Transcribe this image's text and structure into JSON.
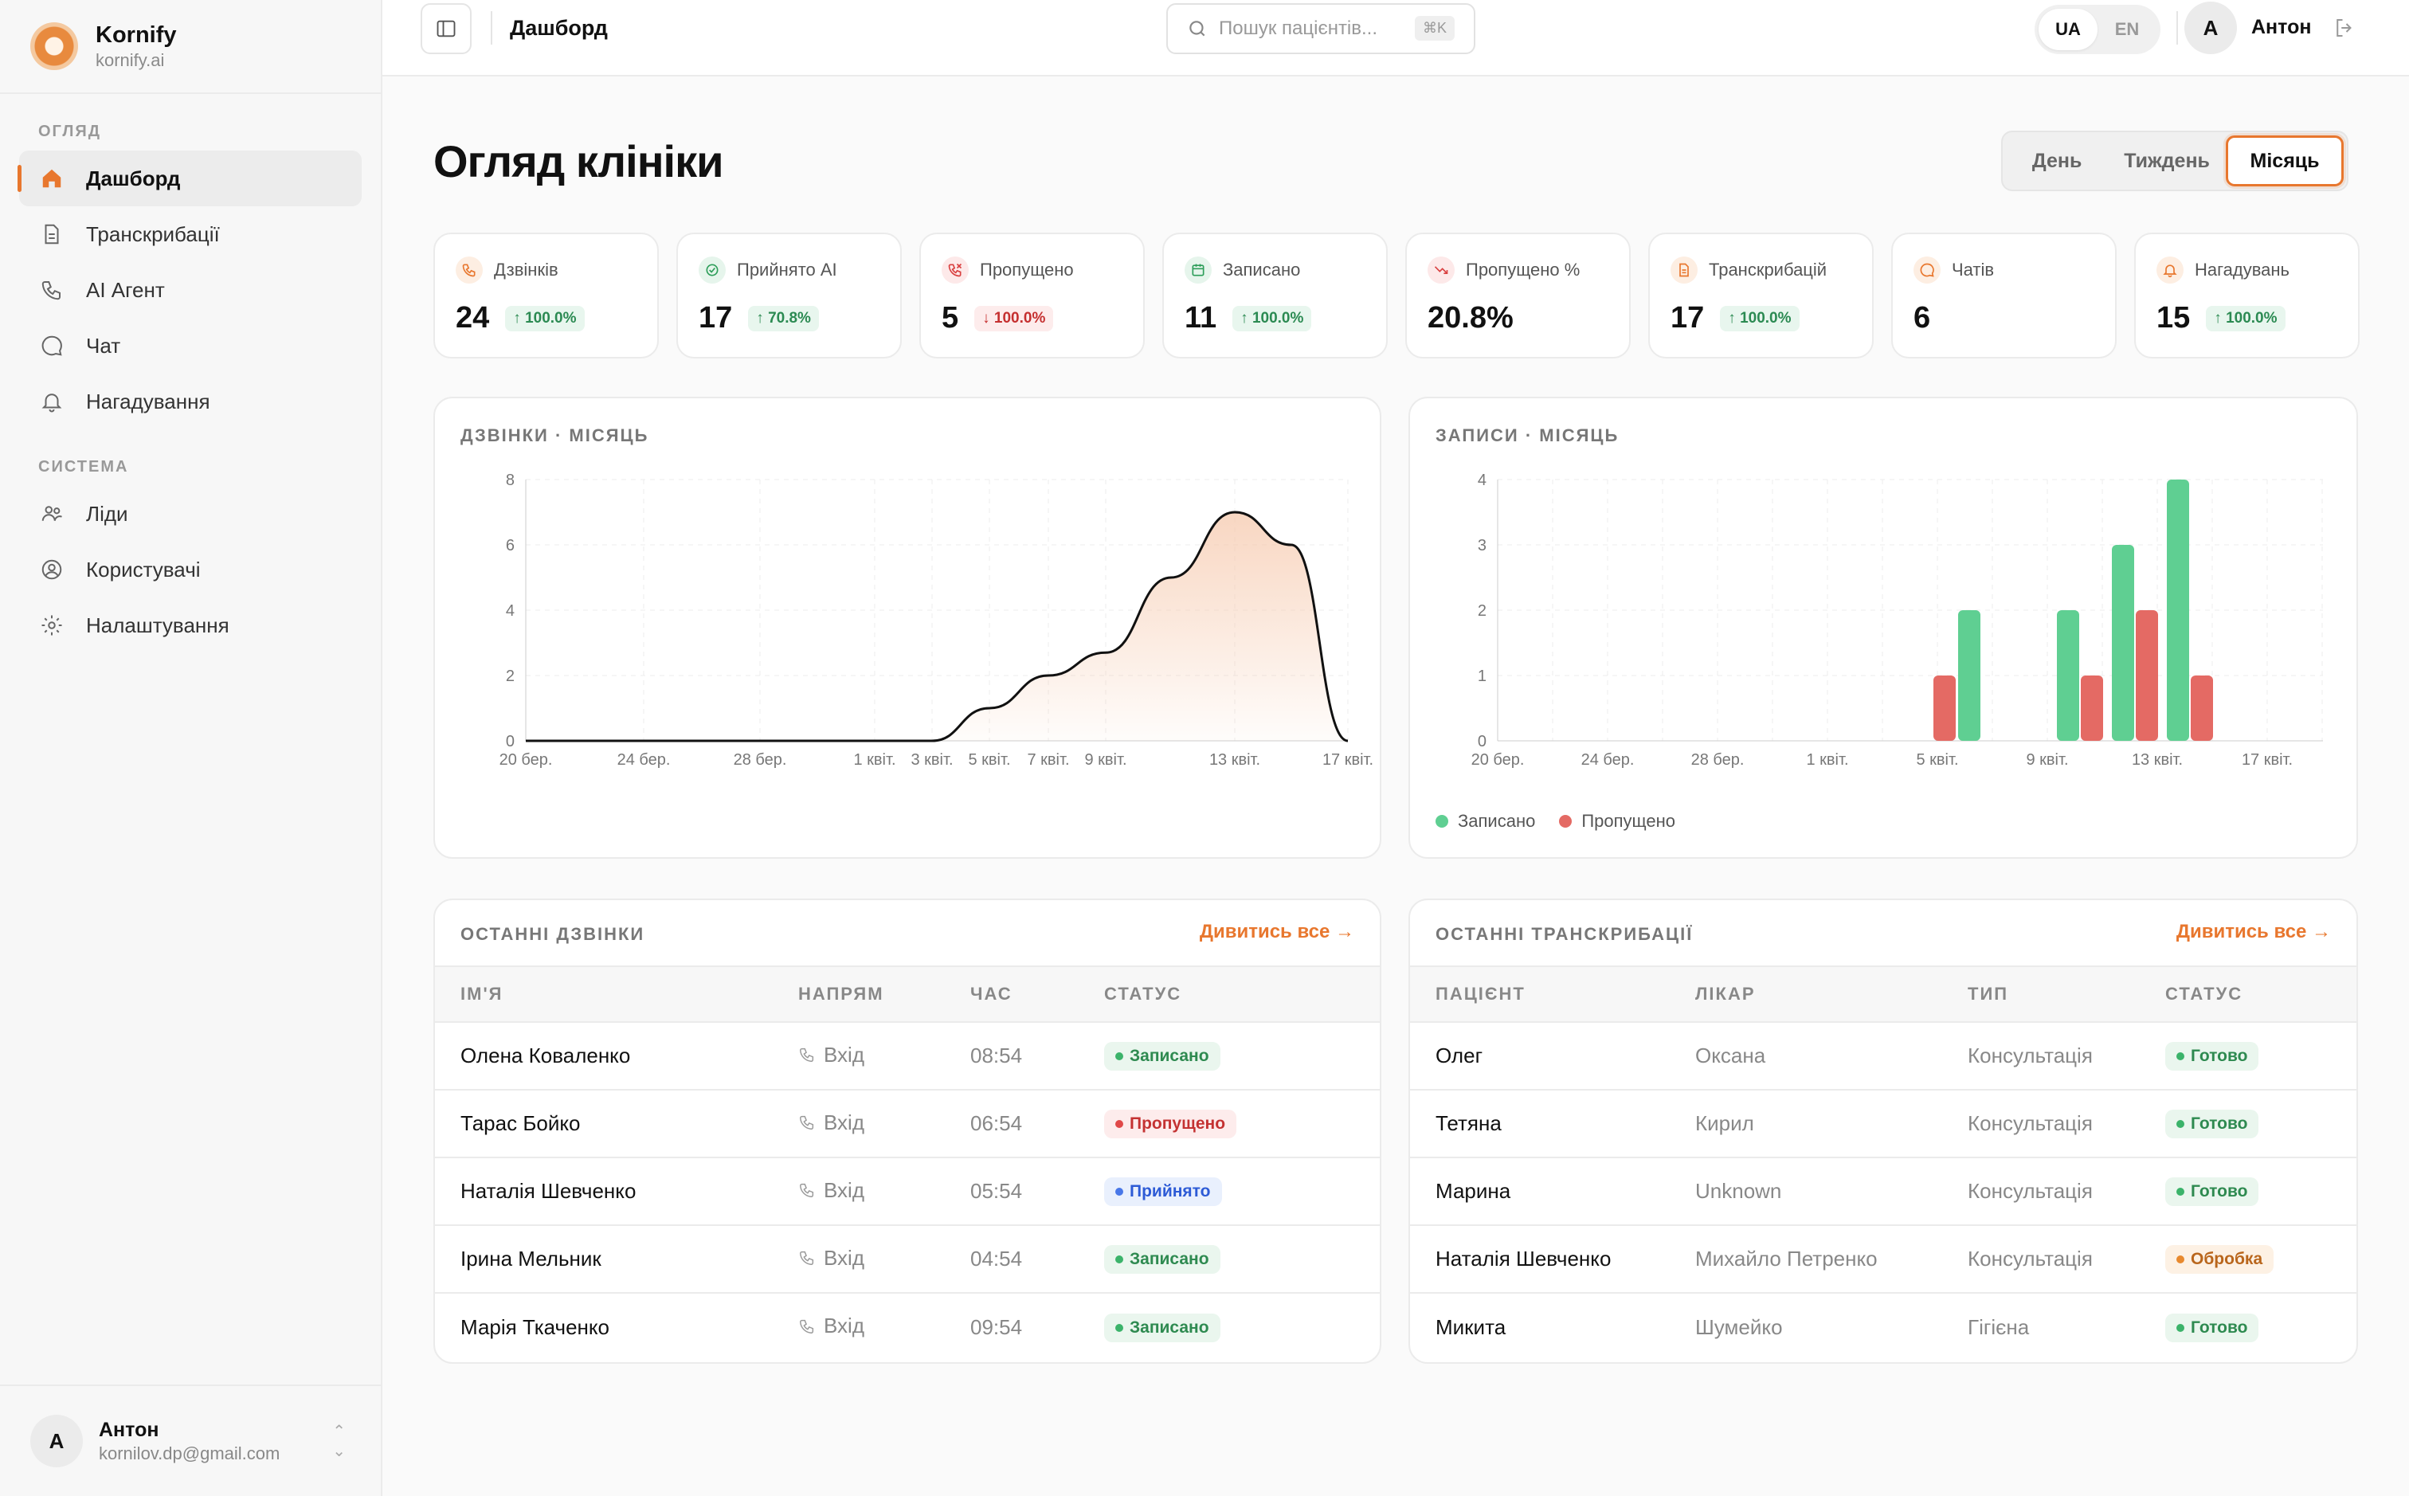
{
  "brand": {
    "name": "Kornify",
    "domain": "kornify.ai"
  },
  "sidebar": {
    "section_overview": "ОГЛЯД",
    "section_system": "СИСТЕМА",
    "items": [
      {
        "label": "Дашборд",
        "icon": "home-icon",
        "active": true
      },
      {
        "label": "Транскрибації",
        "icon": "document-icon"
      },
      {
        "label": "AI Агент",
        "icon": "phone-icon"
      },
      {
        "label": "Чат",
        "icon": "chat-icon"
      },
      {
        "label": "Нагадування",
        "icon": "bell-icon"
      }
    ],
    "system_items": [
      {
        "label": "Ліди",
        "icon": "users-icon"
      },
      {
        "label": "Користувачі",
        "icon": "user-circle-icon"
      },
      {
        "label": "Налаштування",
        "icon": "gear-icon"
      }
    ]
  },
  "user": {
    "initial": "A",
    "name": "Антон",
    "email": "kornilov.dp@gmail.com"
  },
  "topbar": {
    "breadcrumb": "Дашборд",
    "search_placeholder": "Пошук пацієнтів...",
    "search_shortcut": "⌘K",
    "lang_ua": "UA",
    "lang_en": "EN"
  },
  "page": {
    "title": "Огляд клініки",
    "range": [
      "День",
      "Тиждень",
      "Місяць"
    ],
    "range_selected": "Місяць"
  },
  "kpis": [
    {
      "label": "Дзвінків",
      "value": "24",
      "delta": "100.0%",
      "dir": "up",
      "icon": "phone-icon",
      "color": "#e8772e",
      "bg": "#fdeee2"
    },
    {
      "label": "Прийнято AI",
      "value": "17",
      "delta": "70.8%",
      "dir": "up",
      "icon": "check-circle-icon",
      "color": "#2e9e5a",
      "bg": "#e6f5ec"
    },
    {
      "label": "Пропущено",
      "value": "5",
      "delta": "100.0%",
      "dir": "down",
      "icon": "phone-missed-icon",
      "color": "#d94040",
      "bg": "#fde9e9"
    },
    {
      "label": "Записано",
      "value": "11",
      "delta": "100.0%",
      "dir": "up",
      "icon": "calendar-icon",
      "color": "#2e9e5a",
      "bg": "#e6f5ec"
    },
    {
      "label": "Пропущено %",
      "value": "20.8%",
      "delta": "",
      "dir": "",
      "icon": "trend-down-icon",
      "color": "#d94040",
      "bg": "#fde9e9"
    },
    {
      "label": "Транскрибацій",
      "value": "17",
      "delta": "100.0%",
      "dir": "up",
      "icon": "document-icon",
      "color": "#e8772e",
      "bg": "#fdeee2"
    },
    {
      "label": "Чатів",
      "value": "6",
      "delta": "",
      "dir": "",
      "icon": "chat-icon",
      "color": "#e8772e",
      "bg": "#fdeee2"
    },
    {
      "label": "Нагадувань",
      "value": "15",
      "delta": "100.0%",
      "dir": "up",
      "icon": "bell-icon",
      "color": "#e8772e",
      "bg": "#fdeee2"
    }
  ],
  "chart_data": [
    {
      "type": "area",
      "title": "ДЗВІНКИ · МІСЯЦЬ",
      "x_ticks": [
        "20 бер.",
        "24 бер.",
        "28 бер.",
        "1 квіт.",
        "3 квіт.",
        "5 квіт.",
        "7 квіт.",
        "9 квіт.",
        "13 квіт.",
        "17 квіт."
      ],
      "ylim": [
        0,
        8
      ],
      "y_ticks": [
        0,
        2,
        4,
        6,
        8
      ],
      "x": [
        "20 бер.",
        "3 квіт.",
        "5 квіт.",
        "7 квіт.",
        "9 квіт.",
        "11 квіт.",
        "13 квіт.",
        "15 квіт.",
        "17 квіт."
      ],
      "values": [
        0,
        0,
        1,
        2,
        2.7,
        5,
        7,
        6,
        0
      ],
      "color": "#111111",
      "fill": "#f6c9ad"
    },
    {
      "type": "bar",
      "title": "ЗАПИСИ · МІСЯЦЬ",
      "x_ticks": [
        "20 бер.",
        "24 бер.",
        "28 бер.",
        "1 квіт.",
        "5 квіт.",
        "9 квіт.",
        "13 квіт.",
        "17 квіт."
      ],
      "ylim": [
        0,
        4
      ],
      "y_ticks": [
        0,
        1,
        2,
        3,
        4
      ],
      "categories": [
        "5 квіт.",
        "6 квіт.",
        "10 квіт.",
        "12 квіт.",
        "14 квіт.",
        "16 квіт."
      ],
      "series": [
        {
          "name": "Записано",
          "color": "#5fcf92",
          "values": [
            0,
            2,
            2,
            3,
            4,
            0
          ]
        },
        {
          "name": "Пропущено",
          "color": "#e46a64",
          "values": [
            1,
            0,
            1,
            2,
            1,
            0
          ]
        }
      ],
      "legend_position": "bottom-left"
    }
  ],
  "calls": {
    "title": "ОСТАННІ ДЗВІНКИ",
    "see_all": "Дивитись все →",
    "columns": [
      "ІМ'Я",
      "НАПРЯМ",
      "ЧАС",
      "СТАТУС"
    ],
    "rows": [
      {
        "name": "Олена Коваленко",
        "dir": "Вхід",
        "time": "08:54",
        "status": "Записано",
        "tone": "green"
      },
      {
        "name": "Тарас Бойко",
        "dir": "Вхід",
        "time": "06:54",
        "status": "Пропущено",
        "tone": "red"
      },
      {
        "name": "Наталія Шевченко",
        "dir": "Вхід",
        "time": "05:54",
        "status": "Прийнято",
        "tone": "blue"
      },
      {
        "name": "Ірина Мельник",
        "dir": "Вхід",
        "time": "04:54",
        "status": "Записано",
        "tone": "green"
      },
      {
        "name": "Марія Ткаченко",
        "dir": "Вхід",
        "time": "09:54",
        "status": "Записано",
        "tone": "green"
      }
    ]
  },
  "transcripts": {
    "title": "ОСТАННІ ТРАНСКРИБАЦІЇ",
    "see_all": "Дивитись все →",
    "columns": [
      "ПАЦІЄНТ",
      "ЛІКАР",
      "ТИП",
      "СТАТУС"
    ],
    "rows": [
      {
        "patient": "Олег",
        "doctor": "Оксана",
        "type": "Консультація",
        "status": "Готово",
        "tone": "green"
      },
      {
        "patient": "Тетяна",
        "doctor": "Кирил",
        "type": "Консультація",
        "status": "Готово",
        "tone": "green"
      },
      {
        "patient": "Марина",
        "doctor": "Unknown",
        "type": "Консультація",
        "status": "Готово",
        "tone": "green"
      },
      {
        "patient": "Наталія Шевченко",
        "doctor": "Михайло Петренко",
        "type": "Консультація",
        "status": "Обробка",
        "tone": "orange"
      },
      {
        "patient": "Микита",
        "doctor": "Шумейко",
        "type": "Гігієна",
        "status": "Готово",
        "tone": "green"
      }
    ]
  }
}
